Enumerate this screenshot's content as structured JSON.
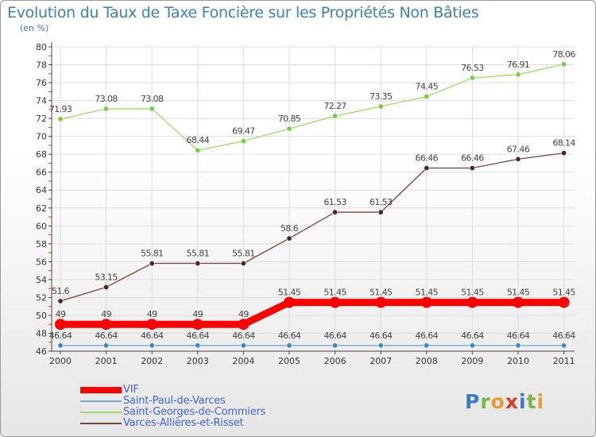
{
  "title": "Evolution du Taux de Taxe Foncière sur les Propriétés Non Bâties",
  "unit": "(en %)",
  "logo": {
    "letters": [
      "P",
      "r",
      "o",
      "x",
      "i",
      "t",
      "i"
    ],
    "colors": [
      "#3a78c8",
      "#7ab648",
      "#e99a2c",
      "#d83a2e",
      "#3a78c8",
      "#7ab648",
      "#e99a2c"
    ]
  },
  "chart_data": {
    "type": "line",
    "x": [
      "2000",
      "2001",
      "2002",
      "2003",
      "2004",
      "2005",
      "2006",
      "2007",
      "2008",
      "2009",
      "2010",
      "2011"
    ],
    "ylim": [
      46,
      80
    ],
    "yticks": [
      "46",
      "48",
      "50",
      "52",
      "54",
      "56",
      "58",
      "60",
      "62",
      "64",
      "66",
      "68",
      "70",
      "72",
      "74",
      "76",
      "78",
      "80"
    ],
    "grid": true,
    "legend_position": "bottom-left",
    "series": [
      {
        "name": "Saint-Georges-de-Commiers",
        "color": "#99dd66",
        "marker": "#77cc44",
        "values": [
          71.93,
          73.08,
          73.08,
          68.44,
          69.47,
          70.85,
          72.27,
          73.35,
          74.45,
          76.53,
          76.91,
          78.06
        ],
        "labels": [
          "71.93",
          "73.08",
          "73.08",
          "68.44",
          "69.47",
          "70.85",
          "72.27",
          "73.35",
          "74.45",
          "76.53",
          "76.91",
          "78.06"
        ]
      },
      {
        "name": "Varces-Allières-et-Risset",
        "color": "#774444",
        "marker": "#552222",
        "values": [
          51.6,
          53.15,
          55.81,
          55.81,
          55.81,
          58.6,
          61.53,
          61.53,
          66.46,
          66.46,
          67.46,
          68.14
        ],
        "labels": [
          "51.6",
          "53.15",
          "55.81",
          "55.81",
          "55.81",
          "58.6",
          "61.53",
          "61.53",
          "66.46",
          "66.46",
          "67.46",
          "68.14"
        ]
      },
      {
        "name": "VIF",
        "color": "#ff0000",
        "marker": "#ff0000",
        "values": [
          49,
          49,
          49,
          49,
          49,
          51.45,
          51.45,
          51.45,
          51.45,
          51.45,
          51.45,
          51.45
        ],
        "labels": [
          "49",
          "49",
          "49",
          "49",
          "49",
          "51.45",
          "51.45",
          "51.45",
          "51.45",
          "51.45",
          "51.45",
          "51.45"
        ]
      },
      {
        "name": "Saint-Paul-de-Varces",
        "color": "#77aacc",
        "marker": "#3388cc",
        "values": [
          46.64,
          46.64,
          46.64,
          46.64,
          46.64,
          46.64,
          46.64,
          46.64,
          46.64,
          46.64,
          46.64,
          46.64
        ],
        "labels": [
          "46.64",
          "46.64",
          "46.64",
          "46.64",
          "46.64",
          "46.64",
          "46.64",
          "46.64",
          "46.64",
          "46.64",
          "46.64",
          "46.64"
        ]
      }
    ],
    "legend": [
      {
        "name": "VIF",
        "color": "#ff0000"
      },
      {
        "name": "Saint-Paul-de-Varces",
        "color": "#77aacc"
      },
      {
        "name": "Saint-Georges-de-Commiers",
        "color": "#99dd66"
      },
      {
        "name": "Varces-Allières-et-Risset",
        "color": "#774444"
      }
    ]
  }
}
